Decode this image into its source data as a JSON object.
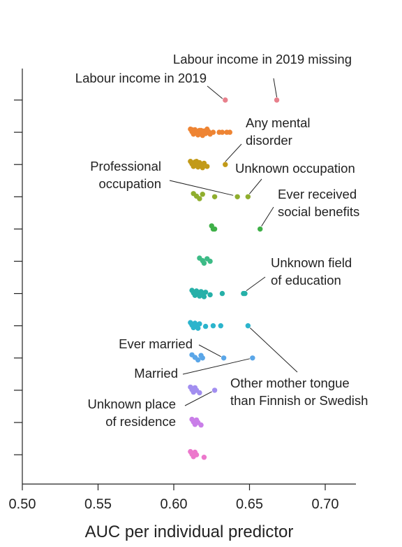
{
  "chart_data": {
    "type": "scatter",
    "xlabel": "AUC per individual predictor",
    "xlim": [
      0.5,
      0.72
    ],
    "x_ticks": [
      "0.50",
      "0.55",
      "0.60",
      "0.65",
      "0.70"
    ],
    "grid": false,
    "rows": [
      {
        "color": "#e8808c",
        "points": [
          0.634,
          0.668
        ]
      },
      {
        "color": "#ee8433",
        "points": [
          0.611,
          0.612,
          0.613,
          0.614,
          0.615,
          0.616,
          0.617,
          0.618,
          0.619,
          0.62,
          0.621,
          0.622,
          0.623,
          0.624,
          0.612,
          0.614,
          0.616,
          0.618,
          0.62,
          0.626,
          0.63,
          0.632,
          0.635,
          0.637
        ]
      },
      {
        "color": "#c29a18",
        "points": [
          0.611,
          0.612,
          0.613,
          0.614,
          0.615,
          0.616,
          0.617,
          0.618,
          0.619,
          0.62,
          0.613,
          0.615,
          0.617,
          0.622,
          0.634
        ]
      },
      {
        "color": "#8fae2e",
        "points": [
          0.613,
          0.615,
          0.617,
          0.619,
          0.627,
          0.642,
          0.649
        ]
      },
      {
        "color": "#3fb048",
        "points": [
          0.625,
          0.626,
          0.627,
          0.657
        ]
      },
      {
        "color": "#3cbb86",
        "points": [
          0.617,
          0.619,
          0.62,
          0.622,
          0.624
        ]
      },
      {
        "color": "#26b0a8",
        "points": [
          0.612,
          0.613,
          0.614,
          0.615,
          0.616,
          0.617,
          0.618,
          0.619,
          0.62,
          0.621,
          0.624,
          0.632,
          0.646,
          0.647
        ]
      },
      {
        "color": "#2bb4cc",
        "points": [
          0.611,
          0.612,
          0.613,
          0.614,
          0.615,
          0.616,
          0.617,
          0.621,
          0.626,
          0.631,
          0.649
        ]
      },
      {
        "color": "#5aa6e8",
        "points": [
          0.612,
          0.614,
          0.616,
          0.618,
          0.619,
          0.633,
          0.652
        ]
      },
      {
        "color": "#a28ef0",
        "points": [
          0.611,
          0.612,
          0.613,
          0.614,
          0.615,
          0.617,
          0.627
        ]
      },
      {
        "color": "#c97ee8",
        "points": [
          0.612,
          0.613,
          0.614,
          0.615,
          0.616,
          0.618
        ]
      },
      {
        "color": "#ec78cc",
        "points": [
          0.611,
          0.612,
          0.613,
          0.614,
          0.615,
          0.62
        ]
      }
    ],
    "annotations": [
      {
        "lines": [
          "Labour income in 2019 missing"
        ],
        "row": 0,
        "x": 0.668
      },
      {
        "lines": [
          "Labour income in 2019"
        ],
        "row": 0,
        "x": 0.634
      },
      {
        "lines": [
          "Any mental",
          "disorder"
        ],
        "row": 2,
        "x": 0.634
      },
      {
        "lines": [
          "Professional",
          "occupation"
        ],
        "row": 3,
        "x": 0.642
      },
      {
        "lines": [
          "Unknown occupation"
        ],
        "row": 3,
        "x": 0.649
      },
      {
        "lines": [
          "Ever received",
          "social benefits"
        ],
        "row": 4,
        "x": 0.657
      },
      {
        "lines": [
          "Unknown field",
          "of education"
        ],
        "row": 6,
        "x": 0.647
      },
      {
        "lines": [
          "Ever married"
        ],
        "row": 8,
        "x": 0.633
      },
      {
        "lines": [
          "Married"
        ],
        "row": 8,
        "x": 0.652
      },
      {
        "lines": [
          "Other mother tongue",
          "than Finnish or Swedish"
        ],
        "row": 7,
        "x": 0.649
      },
      {
        "lines": [
          "Unknown place",
          "of residence"
        ],
        "row": 9,
        "x": 0.627
      }
    ]
  }
}
